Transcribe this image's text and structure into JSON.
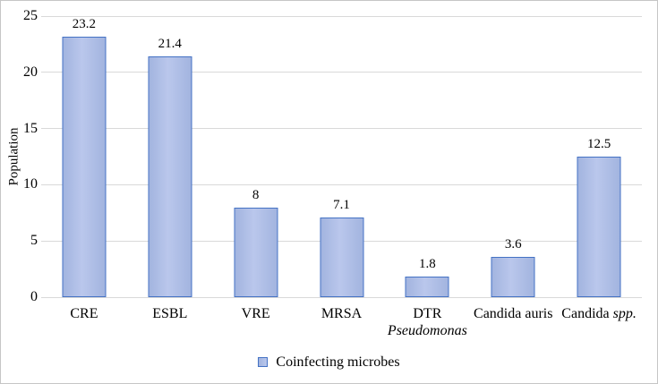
{
  "chart_data": {
    "type": "bar",
    "title": "",
    "xlabel": "",
    "ylabel": "Population",
    "ylim": [
      0,
      25
    ],
    "yticks": [
      25,
      20,
      15,
      10,
      5,
      0
    ],
    "grid": true,
    "categories": [
      "CRE",
      "ESBL",
      "VRE",
      "MRSA",
      "DTR Pseudomonas",
      "Candida auris",
      "Candida spp."
    ],
    "values": [
      23.2,
      21.4,
      8,
      7.1,
      1.8,
      3.6,
      12.5
    ],
    "value_labels": [
      "23.2",
      "21.4",
      "8",
      "7.1",
      "1.8",
      "3.6",
      "12.5"
    ],
    "category_lines": [
      [
        [
          {
            "text": "CRE",
            "italic": false
          }
        ]
      ],
      [
        [
          {
            "text": "ESBL",
            "italic": false
          }
        ]
      ],
      [
        [
          {
            "text": "VRE",
            "italic": false
          }
        ]
      ],
      [
        [
          {
            "text": "MRSA",
            "italic": false
          }
        ]
      ],
      [
        [
          {
            "text": "DTR",
            "italic": false
          }
        ],
        [
          {
            "text": "Pseudomonas",
            "italic": true
          }
        ]
      ],
      [
        [
          {
            "text": "Candida auris",
            "italic": false
          }
        ]
      ],
      [
        [
          {
            "text": "Candida ",
            "italic": false
          },
          {
            "text": "spp.",
            "italic": true
          }
        ]
      ]
    ],
    "legend": {
      "label": "Coinfecting microbes",
      "position": "bottom"
    },
    "colors": {
      "bar_fill": "#a2b4df",
      "bar_fill_light": "#bac7ec",
      "bar_border": "#4472c4",
      "gridline": "#d9d9d9",
      "text": "#000000",
      "figure_border": "#c6c6c6"
    }
  }
}
